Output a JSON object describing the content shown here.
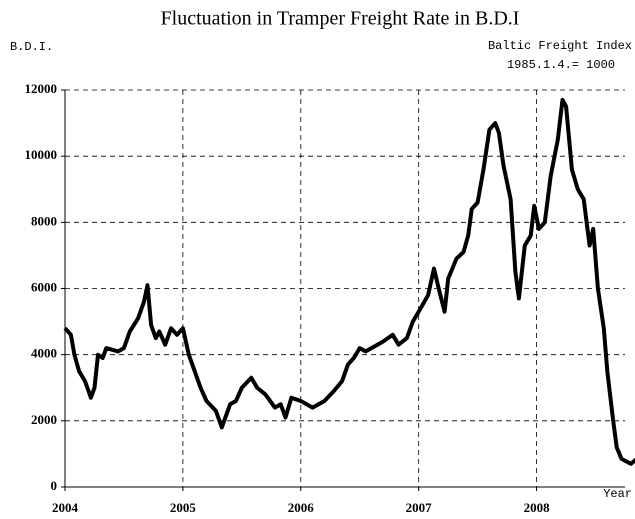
{
  "chart_data": {
    "type": "line",
    "title": "Fluctuation in Tramper Freight Rate in B.D.I",
    "y_label": "B.D.I.",
    "x_label": "Year",
    "annotations": [
      "Baltic Freight Index",
      "1985.1.4.= 1000"
    ],
    "x": [
      2004.0,
      2004.05,
      2004.08,
      2004.12,
      2004.17,
      2004.22,
      2004.25,
      2004.28,
      2004.32,
      2004.35,
      2004.45,
      2004.5,
      2004.55,
      2004.62,
      2004.67,
      2004.7,
      2004.73,
      2004.77,
      2004.8,
      2004.85,
      2004.9,
      2004.95,
      2005.0,
      2005.05,
      2005.1,
      2005.15,
      2005.2,
      2005.28,
      2005.33,
      2005.4,
      2005.45,
      2005.5,
      2005.58,
      2005.63,
      2005.7,
      2005.78,
      2005.83,
      2005.87,
      2005.92,
      2006.0,
      2006.1,
      2006.2,
      2006.28,
      2006.35,
      2006.4,
      2006.45,
      2006.5,
      2006.55,
      2006.6,
      2006.7,
      2006.78,
      2006.83,
      2006.9,
      2006.95,
      2007.0,
      2007.08,
      2007.13,
      2007.17,
      2007.22,
      2007.25,
      2007.32,
      2007.38,
      2007.42,
      2007.45,
      2007.5,
      2007.55,
      2007.6,
      2007.65,
      2007.68,
      2007.72,
      2007.78,
      2007.82,
      2007.85,
      2007.9,
      2007.95,
      2007.98,
      2008.02,
      2008.07,
      2008.12,
      2008.18,
      2008.22,
      2008.25,
      2008.3,
      2008.35,
      2008.4,
      2008.45,
      2008.48,
      2008.52,
      2008.57,
      2008.6,
      2008.65,
      2008.68,
      2008.72,
      2008.8,
      2008.85
    ],
    "values": [
      4800,
      4600,
      4000,
      3500,
      3200,
      2700,
      3000,
      4000,
      3900,
      4200,
      4100,
      4200,
      4700,
      5100,
      5600,
      6100,
      4900,
      4500,
      4700,
      4300,
      4800,
      4600,
      4800,
      4000,
      3500,
      3000,
      2600,
      2300,
      1800,
      2500,
      2600,
      3000,
      3300,
      3000,
      2800,
      2400,
      2500,
      2100,
      2700,
      2600,
      2400,
      2600,
      2900,
      3200,
      3700,
      3900,
      4200,
      4100,
      4200,
      4400,
      4600,
      4300,
      4500,
      5000,
      5300,
      5800,
      6600,
      6000,
      5300,
      6300,
      6900,
      7100,
      7600,
      8400,
      8600,
      9600,
      10800,
      11000,
      10700,
      9700,
      8700,
      6500,
      5700,
      7300,
      7600,
      8500,
      7800,
      8000,
      9400,
      10500,
      11700,
      11500,
      9600,
      9000,
      8700,
      7300,
      7800,
      6000,
      4800,
      3500,
      2000,
      1200,
      850,
      700,
      850
    ],
    "color": "#000000",
    "xlim": [
      2004,
      2008.75
    ],
    "xticks": [
      2004,
      2005,
      2006,
      2007,
      2008
    ],
    "ylim": [
      0,
      12000
    ],
    "yticks": [
      0,
      2000,
      4000,
      6000,
      8000,
      10000,
      12000
    ],
    "grid": true
  }
}
